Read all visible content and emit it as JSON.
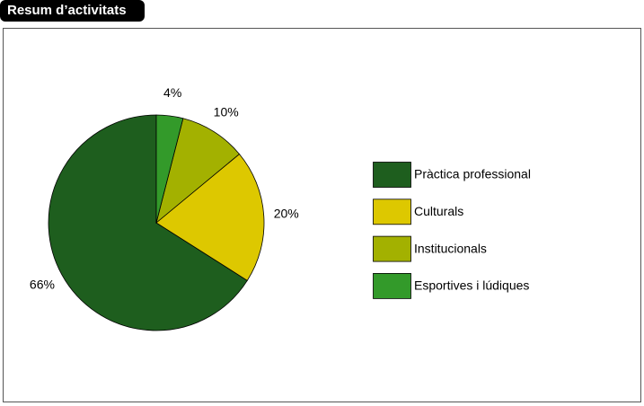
{
  "chart_data": {
    "type": "pie",
    "title": "Resum d’activitats",
    "categories": [
      "Pràctica professional",
      "Culturals",
      "Institucionals",
      "Esportives i lúdiques"
    ],
    "values": [
      66,
      20,
      10,
      4
    ],
    "value_labels": [
      "66%",
      "20%",
      "10%",
      "4%"
    ],
    "colors": [
      "#1e5e1e",
      "#ddc800",
      "#a3b100",
      "#339a2a"
    ],
    "legend": "right"
  }
}
